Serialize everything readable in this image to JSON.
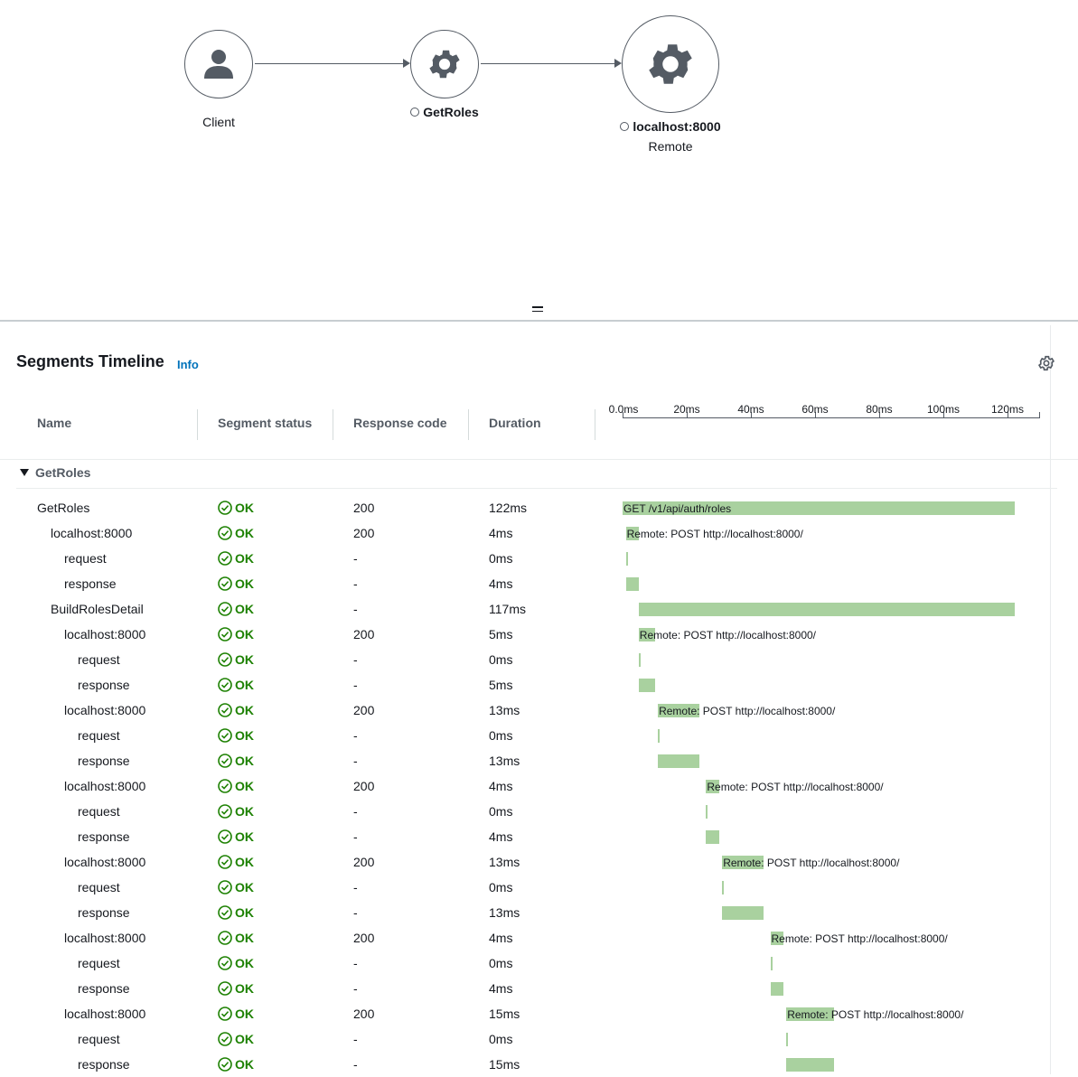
{
  "service_map": {
    "nodes": [
      {
        "name": "Client",
        "sub": ""
      },
      {
        "name": "GetRoles",
        "sub": ""
      },
      {
        "name": "localhost:8000",
        "sub": "Remote"
      }
    ]
  },
  "timeline": {
    "title": "Segments Timeline",
    "info_label": "Info",
    "columns": [
      "Name",
      "Segment status",
      "Response code",
      "Duration"
    ],
    "axis_ticks": [
      "0.0ms",
      "20ms",
      "40ms",
      "60ms",
      "80ms",
      "100ms",
      "120ms"
    ],
    "axis_max_ms": 130,
    "group": "GetRoles",
    "rows": [
      {
        "name": "GetRoles",
        "indent": 0,
        "status": "OK",
        "code": "200",
        "duration": "122ms",
        "start_ms": 0,
        "dur_ms": 122,
        "label": "GET /v1/api/auth/roles"
      },
      {
        "name": "localhost:8000",
        "indent": 1,
        "status": "OK",
        "code": "200",
        "duration": "4ms",
        "start_ms": 1,
        "dur_ms": 4,
        "label": "Remote: POST http://localhost:8000/"
      },
      {
        "name": "request",
        "indent": 2,
        "status": "OK",
        "code": "-",
        "duration": "0ms",
        "start_ms": 1,
        "dur_ms": 0,
        "label": ""
      },
      {
        "name": "response",
        "indent": 2,
        "status": "OK",
        "code": "-",
        "duration": "4ms",
        "start_ms": 1,
        "dur_ms": 4,
        "label": ""
      },
      {
        "name": "BuildRolesDetail",
        "indent": 1,
        "status": "OK",
        "code": "-",
        "duration": "117ms",
        "start_ms": 5,
        "dur_ms": 117,
        "label": ""
      },
      {
        "name": "localhost:8000",
        "indent": 2,
        "status": "OK",
        "code": "200",
        "duration": "5ms",
        "start_ms": 5,
        "dur_ms": 5,
        "label": "Remote: POST http://localhost:8000/"
      },
      {
        "name": "request",
        "indent": 3,
        "status": "OK",
        "code": "-",
        "duration": "0ms",
        "start_ms": 5,
        "dur_ms": 0,
        "label": ""
      },
      {
        "name": "response",
        "indent": 3,
        "status": "OK",
        "code": "-",
        "duration": "5ms",
        "start_ms": 5,
        "dur_ms": 5,
        "label": ""
      },
      {
        "name": "localhost:8000",
        "indent": 2,
        "status": "OK",
        "code": "200",
        "duration": "13ms",
        "start_ms": 11,
        "dur_ms": 13,
        "label": "Remote: POST http://localhost:8000/"
      },
      {
        "name": "request",
        "indent": 3,
        "status": "OK",
        "code": "-",
        "duration": "0ms",
        "start_ms": 11,
        "dur_ms": 0,
        "label": ""
      },
      {
        "name": "response",
        "indent": 3,
        "status": "OK",
        "code": "-",
        "duration": "13ms",
        "start_ms": 11,
        "dur_ms": 13,
        "label": ""
      },
      {
        "name": "localhost:8000",
        "indent": 2,
        "status": "OK",
        "code": "200",
        "duration": "4ms",
        "start_ms": 26,
        "dur_ms": 4,
        "label": "Remote: POST http://localhost:8000/"
      },
      {
        "name": "request",
        "indent": 3,
        "status": "OK",
        "code": "-",
        "duration": "0ms",
        "start_ms": 26,
        "dur_ms": 0,
        "label": ""
      },
      {
        "name": "response",
        "indent": 3,
        "status": "OK",
        "code": "-",
        "duration": "4ms",
        "start_ms": 26,
        "dur_ms": 4,
        "label": ""
      },
      {
        "name": "localhost:8000",
        "indent": 2,
        "status": "OK",
        "code": "200",
        "duration": "13ms",
        "start_ms": 31,
        "dur_ms": 13,
        "label": "Remote: POST http://localhost:8000/"
      },
      {
        "name": "request",
        "indent": 3,
        "status": "OK",
        "code": "-",
        "duration": "0ms",
        "start_ms": 31,
        "dur_ms": 0,
        "label": ""
      },
      {
        "name": "response",
        "indent": 3,
        "status": "OK",
        "code": "-",
        "duration": "13ms",
        "start_ms": 31,
        "dur_ms": 13,
        "label": ""
      },
      {
        "name": "localhost:8000",
        "indent": 2,
        "status": "OK",
        "code": "200",
        "duration": "4ms",
        "start_ms": 46,
        "dur_ms": 4,
        "label": "Remote: POST http://localhost:8000/"
      },
      {
        "name": "request",
        "indent": 3,
        "status": "OK",
        "code": "-",
        "duration": "0ms",
        "start_ms": 46,
        "dur_ms": 0,
        "label": ""
      },
      {
        "name": "response",
        "indent": 3,
        "status": "OK",
        "code": "-",
        "duration": "4ms",
        "start_ms": 46,
        "dur_ms": 4,
        "label": ""
      },
      {
        "name": "localhost:8000",
        "indent": 2,
        "status": "OK",
        "code": "200",
        "duration": "15ms",
        "start_ms": 51,
        "dur_ms": 15,
        "label": "Remote: POST http://localhost:8000/"
      },
      {
        "name": "request",
        "indent": 3,
        "status": "OK",
        "code": "-",
        "duration": "0ms",
        "start_ms": 51,
        "dur_ms": 0,
        "label": ""
      },
      {
        "name": "response",
        "indent": 3,
        "status": "OK",
        "code": "-",
        "duration": "15ms",
        "start_ms": 51,
        "dur_ms": 15,
        "label": ""
      }
    ]
  }
}
